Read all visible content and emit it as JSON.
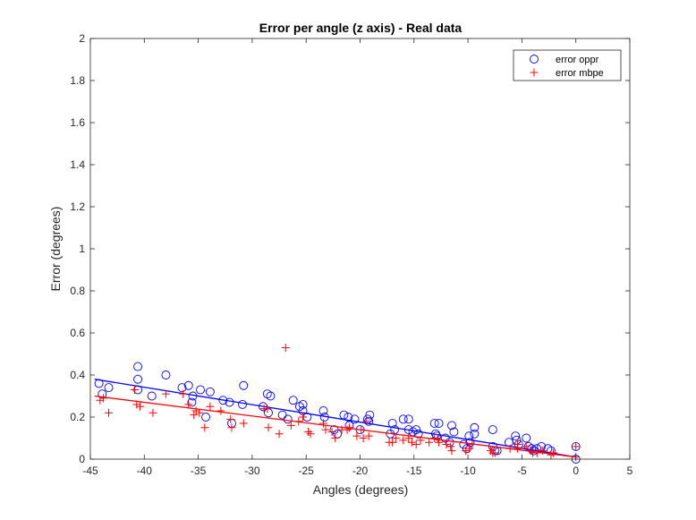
{
  "chart_data": {
    "type": "scatter",
    "title": "Error per angle (z axis) - Real data",
    "xlabel": "Angles (degrees)",
    "ylabel": "Error (degrees)",
    "xlim": [
      -45,
      5
    ],
    "ylim": [
      0,
      2
    ],
    "xticks": [
      "-45",
      "-40",
      "-35",
      "-30",
      "-25",
      "-20",
      "-15",
      "-10",
      "-5",
      "0",
      "5"
    ],
    "yticks": [
      "0",
      "0.2",
      "0.4",
      "0.6",
      "0.8",
      "1",
      "1.2",
      "1.4",
      "1.6",
      "1.8",
      "2"
    ],
    "grid": false,
    "legend_position": "top-right",
    "series": [
      {
        "name": "error oppr",
        "marker": "circle",
        "color": "#0000ff",
        "points": [
          [
            -44.2,
            0.36
          ],
          [
            -43.9,
            0.31
          ],
          [
            -43.3,
            0.34
          ],
          [
            -40.6,
            0.44
          ],
          [
            -40.6,
            0.38
          ],
          [
            -40.6,
            0.33
          ],
          [
            -39.3,
            0.3
          ],
          [
            -38.0,
            0.4
          ],
          [
            -36.5,
            0.34
          ],
          [
            -35.9,
            0.35
          ],
          [
            -35.5,
            0.3
          ],
          [
            -35.6,
            0.27
          ],
          [
            -34.8,
            0.33
          ],
          [
            -34.3,
            0.2
          ],
          [
            -33.9,
            0.32
          ],
          [
            -32.7,
            0.28
          ],
          [
            -32.1,
            0.27
          ],
          [
            -31.9,
            0.17
          ],
          [
            -30.9,
            0.26
          ],
          [
            -30.8,
            0.35
          ],
          [
            -29.0,
            0.25
          ],
          [
            -28.6,
            0.31
          ],
          [
            -28.3,
            0.3
          ],
          [
            -28.5,
            0.22
          ],
          [
            -27.2,
            0.21
          ],
          [
            -26.7,
            0.19
          ],
          [
            -26.2,
            0.28
          ],
          [
            -25.6,
            0.25
          ],
          [
            -25.3,
            0.26
          ],
          [
            -25.3,
            0.23
          ],
          [
            -24.9,
            0.2
          ],
          [
            -23.4,
            0.23
          ],
          [
            -23.3,
            0.2
          ],
          [
            -22.4,
            0.14
          ],
          [
            -22.1,
            0.12
          ],
          [
            -21.5,
            0.21
          ],
          [
            -21.1,
            0.2
          ],
          [
            -21.0,
            0.16
          ],
          [
            -20.5,
            0.19
          ],
          [
            -20.0,
            0.14
          ],
          [
            -19.3,
            0.19
          ],
          [
            -19.1,
            0.21
          ],
          [
            -19.2,
            0.18
          ],
          [
            -17.2,
            0.12
          ],
          [
            -17.0,
            0.17
          ],
          [
            -16.8,
            0.14
          ],
          [
            -16.0,
            0.19
          ],
          [
            -15.5,
            0.19
          ],
          [
            -15.5,
            0.14
          ],
          [
            -15.1,
            0.13
          ],
          [
            -14.8,
            0.14
          ],
          [
            -14.6,
            0.12
          ],
          [
            -13.1,
            0.17
          ],
          [
            -13.0,
            0.12
          ],
          [
            -12.9,
            0.11
          ],
          [
            -12.7,
            0.17
          ],
          [
            -12.1,
            0.1
          ],
          [
            -11.7,
            0.08
          ],
          [
            -11.5,
            0.16
          ],
          [
            -11.3,
            0.13
          ],
          [
            -10.4,
            0.07
          ],
          [
            -10.1,
            0.05
          ],
          [
            -9.9,
            0.11
          ],
          [
            -9.8,
            0.08
          ],
          [
            -9.4,
            0.15
          ],
          [
            -9.4,
            0.12
          ],
          [
            -7.7,
            0.14
          ],
          [
            -7.7,
            0.06
          ],
          [
            -7.5,
            0.04
          ],
          [
            -7.3,
            0.04
          ],
          [
            -6.2,
            0.08
          ],
          [
            -5.6,
            0.11
          ],
          [
            -5.5,
            0.09
          ],
          [
            -5.3,
            0.07
          ],
          [
            -4.6,
            0.1
          ],
          [
            -4.4,
            0.06
          ],
          [
            -4.1,
            0.05
          ],
          [
            -3.9,
            0.04
          ],
          [
            -3.6,
            0.05
          ],
          [
            -3.2,
            0.06
          ],
          [
            -2.6,
            0.05
          ],
          [
            -2.3,
            0.04
          ],
          [
            0.0,
            0.06
          ],
          [
            0.0,
            0.0
          ]
        ],
        "fit_line": [
          [
            -44.6,
            0.38
          ],
          [
            0.0,
            0.01
          ]
        ]
      },
      {
        "name": "error mbpe",
        "marker": "plus",
        "color": "#ff0000",
        "points": [
          [
            -44.1,
            0.28
          ],
          [
            -43.8,
            0.29
          ],
          [
            -43.3,
            0.22
          ],
          [
            -40.9,
            0.33
          ],
          [
            -40.7,
            0.26
          ],
          [
            -40.4,
            0.25
          ],
          [
            -39.2,
            0.22
          ],
          [
            -38.0,
            0.31
          ],
          [
            -36.4,
            0.31
          ],
          [
            -35.9,
            0.26
          ],
          [
            -35.4,
            0.21
          ],
          [
            -35.2,
            0.23
          ],
          [
            -34.9,
            0.22
          ],
          [
            -34.4,
            0.15
          ],
          [
            -33.9,
            0.25
          ],
          [
            -32.9,
            0.23
          ],
          [
            -32.0,
            0.19
          ],
          [
            -31.9,
            0.15
          ],
          [
            -30.8,
            0.17
          ],
          [
            -28.9,
            0.24
          ],
          [
            -28.6,
            0.24
          ],
          [
            -28.5,
            0.15
          ],
          [
            -27.5,
            0.12
          ],
          [
            -26.9,
            0.53
          ],
          [
            -26.4,
            0.16
          ],
          [
            -25.7,
            0.18
          ],
          [
            -25.3,
            0.2
          ],
          [
            -24.8,
            0.13
          ],
          [
            -24.6,
            0.12
          ],
          [
            -23.4,
            0.17
          ],
          [
            -23.2,
            0.14
          ],
          [
            -22.6,
            0.13
          ],
          [
            -22.3,
            0.1
          ],
          [
            -21.7,
            0.14
          ],
          [
            -21.2,
            0.14
          ],
          [
            -21.0,
            0.15
          ],
          [
            -20.3,
            0.11
          ],
          [
            -19.9,
            0.14
          ],
          [
            -19.7,
            0.1
          ],
          [
            -19.4,
            0.18
          ],
          [
            -19.2,
            0.11
          ],
          [
            -17.3,
            0.08
          ],
          [
            -17.0,
            0.08
          ],
          [
            -16.7,
            0.1
          ],
          [
            -16.0,
            0.09
          ],
          [
            -15.5,
            0.1
          ],
          [
            -15.2,
            0.08
          ],
          [
            -14.8,
            0.07
          ],
          [
            -14.4,
            0.09
          ],
          [
            -13.6,
            0.08
          ],
          [
            -13.1,
            0.1
          ],
          [
            -12.8,
            0.1
          ],
          [
            -12.7,
            0.08
          ],
          [
            -12.0,
            0.07
          ],
          [
            -11.6,
            0.06
          ],
          [
            -11.5,
            0.04
          ],
          [
            -10.2,
            0.04
          ],
          [
            -9.9,
            0.05
          ],
          [
            -9.6,
            0.07
          ],
          [
            -7.9,
            0.04
          ],
          [
            -7.7,
            0.03
          ],
          [
            -7.5,
            0.03
          ],
          [
            -6.1,
            0.05
          ],
          [
            -5.4,
            0.05
          ],
          [
            -5.4,
            0.07
          ],
          [
            -4.6,
            0.06
          ],
          [
            -4.2,
            0.04
          ],
          [
            -4.0,
            0.03
          ],
          [
            -3.6,
            0.03
          ],
          [
            -3.1,
            0.04
          ],
          [
            -2.3,
            0.02
          ],
          [
            -2.1,
            0.03
          ],
          [
            0.0,
            0.06
          ],
          [
            0.0,
            0.01
          ]
        ],
        "fit_line": [
          [
            -44.6,
            0.3
          ],
          [
            0.0,
            0.01
          ]
        ]
      }
    ]
  }
}
